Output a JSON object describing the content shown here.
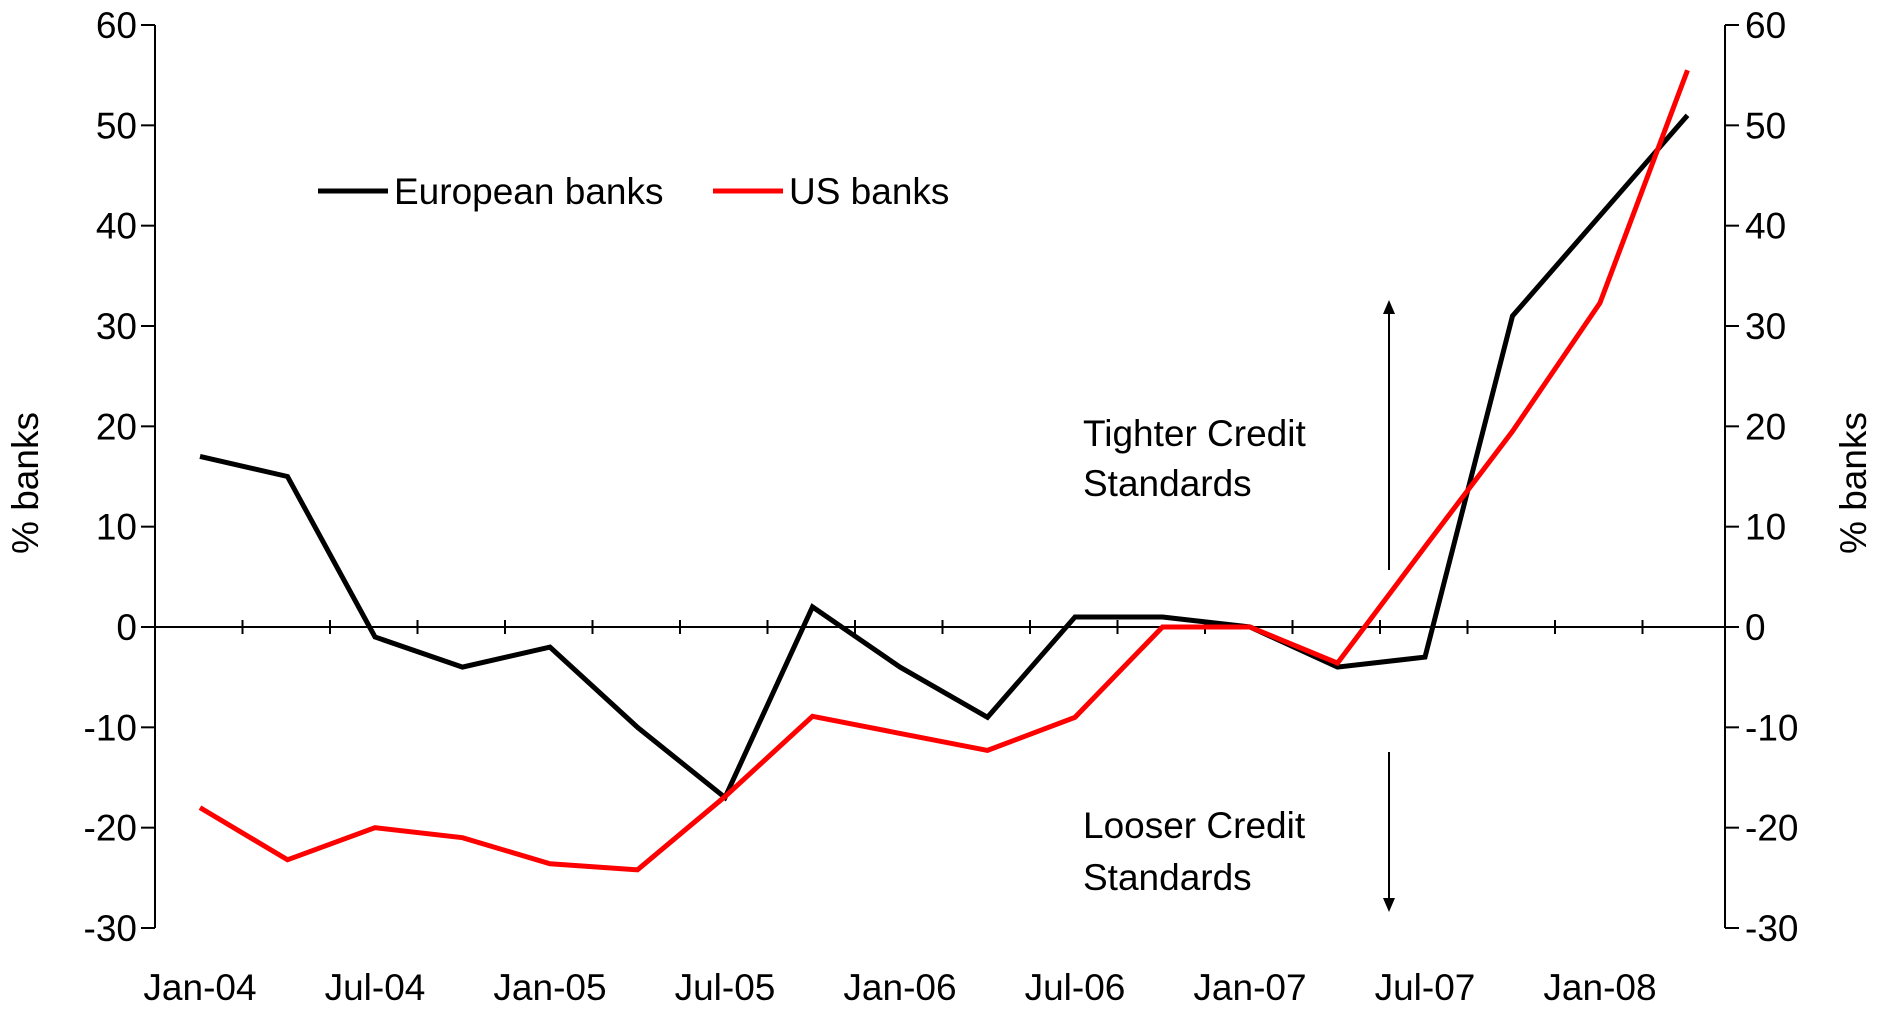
{
  "chart_data": {
    "type": "line",
    "title": "",
    "ylabel_left": "% banks",
    "ylabel_right": "% banks",
    "ylim": [
      -30,
      60
    ],
    "yticks": [
      -30,
      -20,
      -10,
      0,
      10,
      20,
      30,
      40,
      50,
      60
    ],
    "x_tick_labels": [
      "Jan-04",
      "Jul-04",
      "Jan-05",
      "Jul-05",
      "Jan-06",
      "Jul-06",
      "Jan-07",
      "Jul-07",
      "Jan-08"
    ],
    "x_quarters": [
      "Q1-04",
      "Q2-04",
      "Q3-04",
      "Q4-04",
      "Q1-05",
      "Q2-05",
      "Q3-05",
      "Q4-05",
      "Q1-06",
      "Q2-06",
      "Q3-06",
      "Q4-06",
      "Q1-07",
      "Q2-07",
      "Q3-07",
      "Q4-07",
      "Q1-08",
      "Q2-08"
    ],
    "series": [
      {
        "name": "European banks",
        "color": "#000000",
        "values": [
          17,
          15,
          -1,
          -4,
          -2,
          -10,
          -17,
          2,
          -4,
          -9,
          1,
          1,
          0,
          -4,
          -3,
          31,
          41,
          51
        ]
      },
      {
        "name": "US banks",
        "color": "#ff0000",
        "values": [
          -18,
          -23.2,
          -20,
          -21,
          -23.6,
          -24.2,
          -16.9,
          -8.9,
          -10.6,
          -12.3,
          -9,
          0,
          0,
          -3.6,
          8,
          19.5,
          32.3,
          55.5
        ]
      }
    ],
    "legend_position": "top-left",
    "annotations": [
      {
        "text_line1": "Tighter Credit",
        "text_line2": "Standards",
        "arrow": "up"
      },
      {
        "text_line1": "Looser Credit",
        "text_line2": "Standards",
        "arrow": "down"
      }
    ],
    "grid": false
  }
}
